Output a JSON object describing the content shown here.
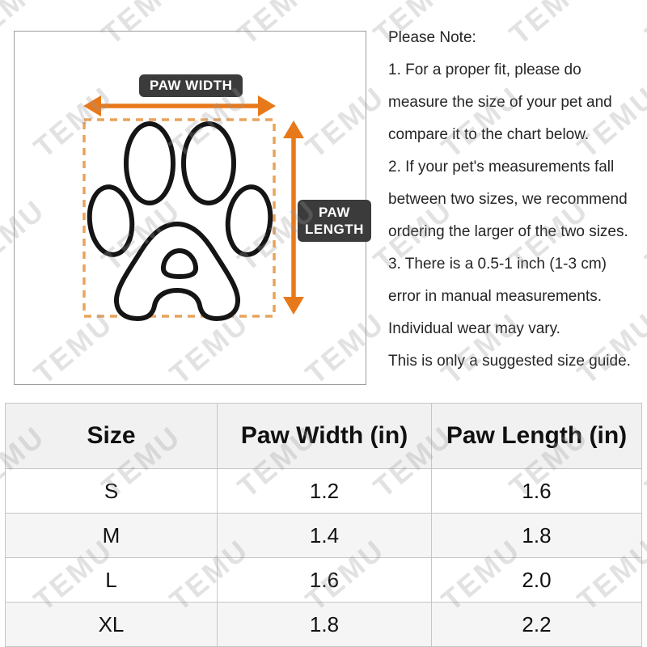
{
  "watermark": {
    "text": "TEMU"
  },
  "diagram": {
    "paw_width_label": "PAW WIDTH",
    "paw_length_label_line1": "PAW",
    "paw_length_label_line2": "LENGTH",
    "arrow_color": "#e8791b",
    "dash_color": "#e9a35c",
    "label_bg": "#3b3b3b",
    "paw_outline_color": "#151515"
  },
  "notes": {
    "lines": [
      "Please Note:",
      "1. For a proper fit, please do",
      "measure the size of your pet and",
      "compare it to the chart below.",
      "2. If your pet's measurements fall",
      "between two sizes, we recommend",
      "ordering the larger of the two sizes.",
      "3. There is a 0.5-1 inch (1-3 cm)",
      "error in manual measurements.",
      "Individual wear may vary.",
      "This is only a suggested size guide."
    ]
  },
  "table": {
    "headers": [
      "Size",
      "Paw Width (in)",
      "Paw Length (in)"
    ],
    "rows": [
      {
        "size": "S",
        "width": "1.2",
        "length": "1.6"
      },
      {
        "size": "M",
        "width": "1.4",
        "length": "1.8"
      },
      {
        "size": "L",
        "width": "1.6",
        "length": "2.0"
      },
      {
        "size": "XL",
        "width": "1.8",
        "length": "2.2"
      }
    ]
  }
}
